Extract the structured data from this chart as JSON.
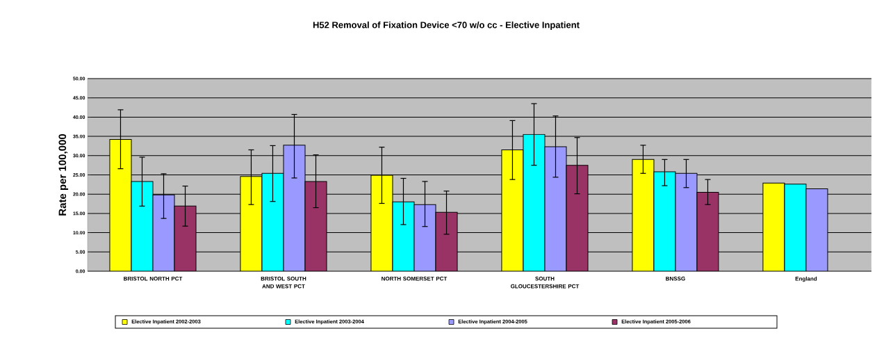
{
  "chart_data": {
    "type": "bar",
    "title": "H52 Removal of Fixation Device <70 w/o cc - Elective Inpatient",
    "ylabel": "Rate per 100,000",
    "categories": [
      "BRISTOL NORTH PCT",
      "BRISTOL SOUTH AND WEST PCT",
      "NORTH SOMERSET PCT",
      "SOUTH GLOUCESTERSHIRE PCT",
      "BNSSG",
      "England"
    ],
    "series": [
      {
        "name": "Elective Inpatient 2002-2003",
        "color": "#ffff00",
        "values": [
          34.2,
          24.6,
          24.9,
          31.5,
          29.0,
          22.9
        ],
        "errors": [
          [
            26.6,
            41.9
          ],
          [
            17.3,
            31.5
          ],
          [
            17.6,
            32.2
          ],
          [
            23.8,
            39.1
          ],
          [
            25.4,
            32.7
          ],
          null
        ]
      },
      {
        "name": "Elective Inpatient 2003-2004",
        "color": "#00ffff",
        "values": [
          23.3,
          25.4,
          18.0,
          35.5,
          25.8,
          22.6
        ],
        "errors": [
          [
            16.9,
            29.6
          ],
          [
            18.1,
            32.6
          ],
          [
            12.1,
            24.1
          ],
          [
            27.5,
            43.5
          ],
          [
            22.2,
            29.0
          ],
          null
        ]
      },
      {
        "name": "Elective Inpatient 2004-2005",
        "color": "#9999ff",
        "values": [
          19.8,
          32.7,
          17.3,
          32.3,
          25.4,
          21.4
        ],
        "errors": [
          [
            13.7,
            25.3
          ],
          [
            24.2,
            40.7
          ],
          [
            11.6,
            23.3
          ],
          [
            24.4,
            40.3
          ],
          [
            21.7,
            29.0
          ],
          null
        ]
      },
      {
        "name": "Elective Inpatient 2005-2006",
        "color": "#993366",
        "values": [
          16.9,
          23.3,
          15.3,
          27.5,
          20.5,
          null
        ],
        "errors": [
          [
            11.7,
            22.1
          ],
          [
            16.5,
            30.2
          ],
          [
            9.6,
            20.8
          ],
          [
            20.1,
            34.7
          ],
          [
            17.3,
            23.8
          ],
          null
        ]
      }
    ],
    "ylim": [
      0,
      50
    ],
    "yticks": [
      {
        "value": 0,
        "label": "0.00"
      },
      {
        "value": 5,
        "label": "5.00"
      },
      {
        "value": 10,
        "label": "10.00"
      },
      {
        "value": 15,
        "label": "15.00"
      },
      {
        "value": 20,
        "label": "20.00"
      },
      {
        "value": 25,
        "label": "25.00"
      },
      {
        "value": 30,
        "label": "30.00"
      },
      {
        "value": 35,
        "label": "35.00"
      },
      {
        "value": 40,
        "label": "40.00"
      },
      {
        "value": 45,
        "label": "45.00"
      },
      {
        "value": 50,
        "label": "50.00"
      }
    ],
    "grid": "y",
    "legend": "bottom"
  }
}
